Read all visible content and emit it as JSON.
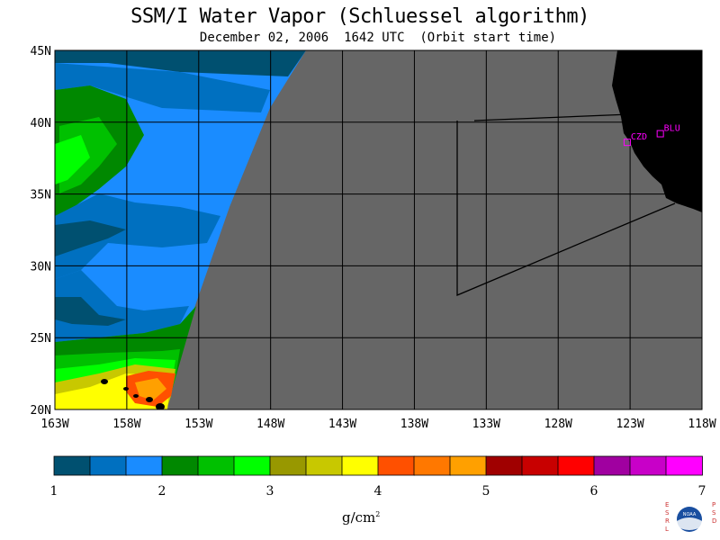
{
  "title": "SSM/I Water Vapor (Schluessel algorithm)",
  "subtitle": "December 02, 2006  1642 UTC  (Orbit start time)",
  "map": {
    "lat_labels": [
      "45N",
      "40N",
      "35N",
      "30N",
      "25N",
      "20N"
    ],
    "lon_labels": [
      "163W",
      "158W",
      "153W",
      "148W",
      "143W",
      "138W",
      "133W",
      "128W",
      "123W",
      "118W"
    ],
    "lat_range": [
      20,
      45
    ],
    "lon_range": [
      -163,
      -118
    ],
    "no_data_color": "#666666",
    "land_color": "#000000",
    "stations": [
      {
        "name": "CZD",
        "lat": 38.6,
        "lon": -123.2
      },
      {
        "name": "BLU",
        "lat": 39.2,
        "lon": -120.9
      }
    ]
  },
  "colorbar": {
    "min": 1,
    "max": 7,
    "tick_labels": [
      "1",
      "2",
      "3",
      "4",
      "5",
      "6",
      "7"
    ],
    "unit_base": "g/cm",
    "unit_exp": "2",
    "colors": [
      "#005070",
      "#0070c0",
      "#1a8cff",
      "#008800",
      "#00c000",
      "#00ff00",
      "#989800",
      "#c8c800",
      "#ffff00",
      "#ff5000",
      "#ff7800",
      "#ffa000",
      "#a00000",
      "#c80000",
      "#ff0000",
      "#a000a0",
      "#c800c8",
      "#ff00ff"
    ]
  },
  "logo": {
    "left_text": "ESRL",
    "right_text": "PSD",
    "center_text": "NOAA"
  }
}
